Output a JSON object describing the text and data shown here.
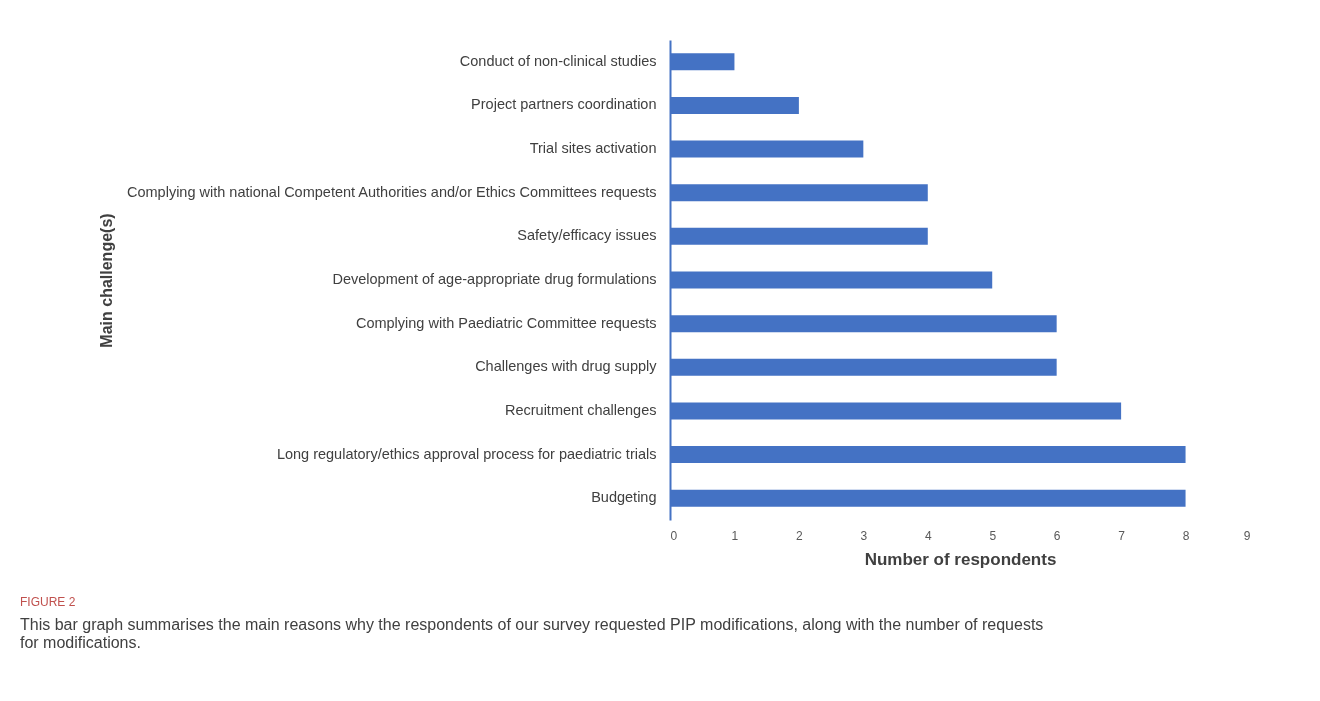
{
  "chart_data": {
    "type": "bar",
    "orientation": "horizontal",
    "xlabel": "Number of respondents",
    "ylabel": "Main challenge(s)",
    "categories": [
      "Conduct of non-clinical studies",
      "Project partners coordination",
      "Trial sites activation",
      "Complying with national Competent Authorities and/or Ethics Committees requests",
      "Safety/efficacy issues",
      "Development of age-appropriate drug formulations",
      "Complying with Paediatric Committee requests",
      "Challenges with drug supply",
      "Recruitment challenges",
      "Long regulatory/ethics approval process for paediatric trials",
      "Budgeting"
    ],
    "values": [
      1,
      2,
      3,
      4,
      4,
      5,
      6,
      6,
      7,
      8,
      8
    ],
    "color": "#4472c4",
    "xlim": [
      0,
      9
    ],
    "xticks": [
      0,
      1,
      2,
      3,
      4,
      5,
      6,
      7,
      8,
      9
    ],
    "grid": false,
    "annotations": [
      "FIGURE 2",
      "This bar graph summarises the main reasons why the respondents of our survey requested PIP modifications, along with the number of requests for modifications."
    ]
  }
}
